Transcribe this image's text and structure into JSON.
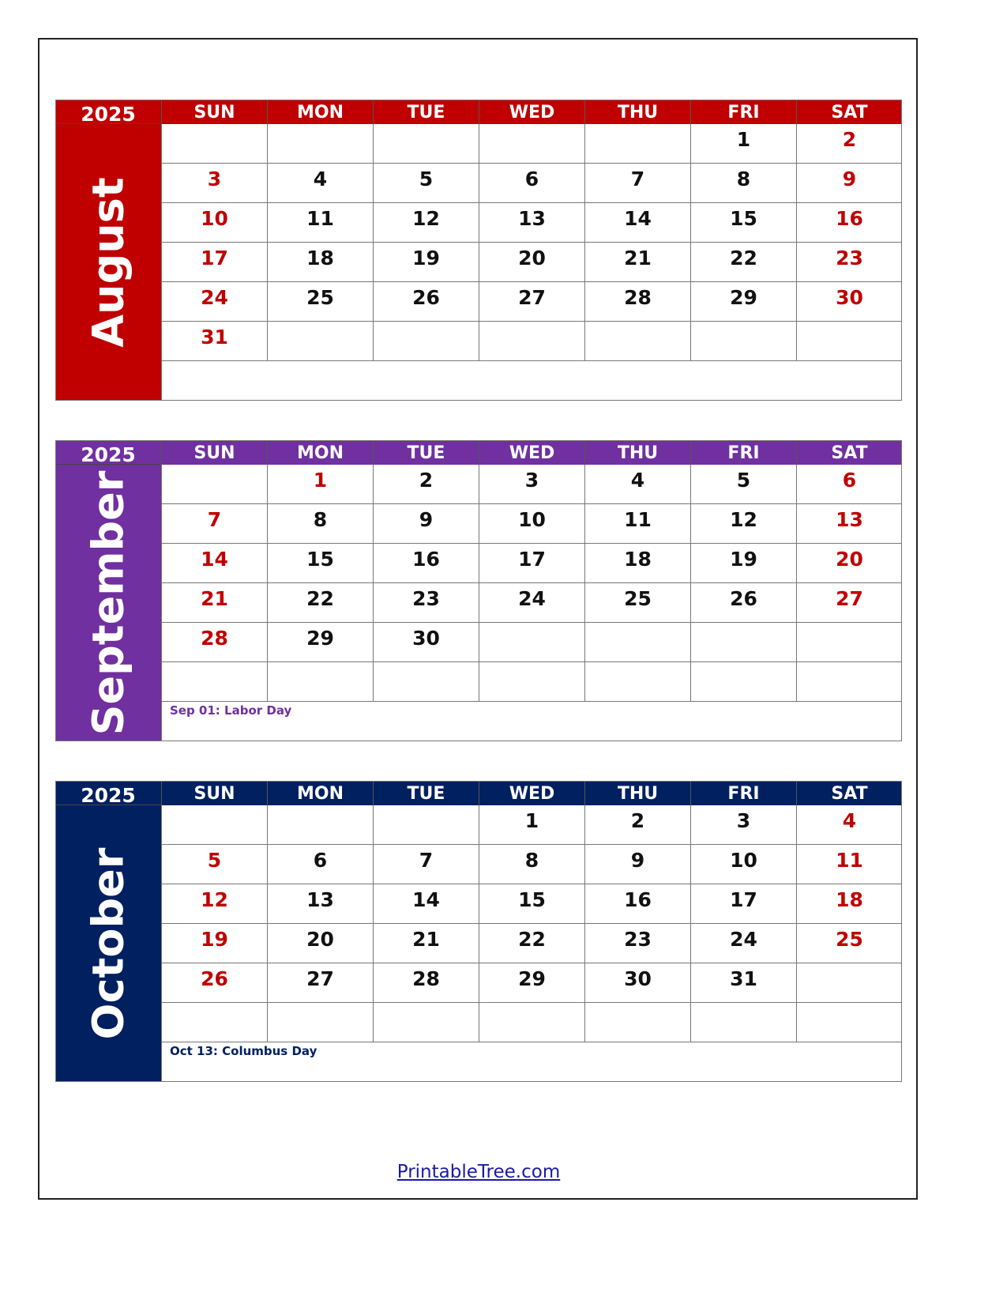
{
  "weekdays": [
    "SUN",
    "MON",
    "TUE",
    "WED",
    "THU",
    "FRI",
    "SAT"
  ],
  "weekend_color": "#C00000",
  "months": [
    {
      "name": "August",
      "year": "2025",
      "color": "#C00000",
      "weeks": [
        [
          null,
          null,
          null,
          null,
          null,
          1,
          2
        ],
        [
          3,
          4,
          5,
          6,
          7,
          8,
          9
        ],
        [
          10,
          11,
          12,
          13,
          14,
          15,
          16
        ],
        [
          17,
          18,
          19,
          20,
          21,
          22,
          23
        ],
        [
          24,
          25,
          26,
          27,
          28,
          29,
          30
        ],
        [
          31,
          null,
          null,
          null,
          null,
          null,
          null
        ]
      ],
      "red_days": [],
      "note": ""
    },
    {
      "name": "September",
      "year": "2025",
      "color": "#7030A0",
      "weeks": [
        [
          null,
          1,
          2,
          3,
          4,
          5,
          6
        ],
        [
          7,
          8,
          9,
          10,
          11,
          12,
          13
        ],
        [
          14,
          15,
          16,
          17,
          18,
          19,
          20
        ],
        [
          21,
          22,
          23,
          24,
          25,
          26,
          27
        ],
        [
          28,
          29,
          30,
          null,
          null,
          null,
          null
        ],
        [
          null,
          null,
          null,
          null,
          null,
          null,
          null
        ]
      ],
      "red_days": [
        1
      ],
      "note": "Sep 01: Labor Day"
    },
    {
      "name": "October",
      "year": "2025",
      "color": "#002060",
      "weeks": [
        [
          null,
          null,
          null,
          1,
          2,
          3,
          4
        ],
        [
          5,
          6,
          7,
          8,
          9,
          10,
          11
        ],
        [
          12,
          13,
          14,
          15,
          16,
          17,
          18
        ],
        [
          19,
          20,
          21,
          22,
          23,
          24,
          25
        ],
        [
          26,
          27,
          28,
          29,
          30,
          31,
          null
        ],
        [
          null,
          null,
          null,
          null,
          null,
          null,
          null
        ]
      ],
      "red_days": [],
      "note": "Oct 13: Columbus Day"
    }
  ],
  "footer": {
    "link": "PrintableTree.com"
  }
}
